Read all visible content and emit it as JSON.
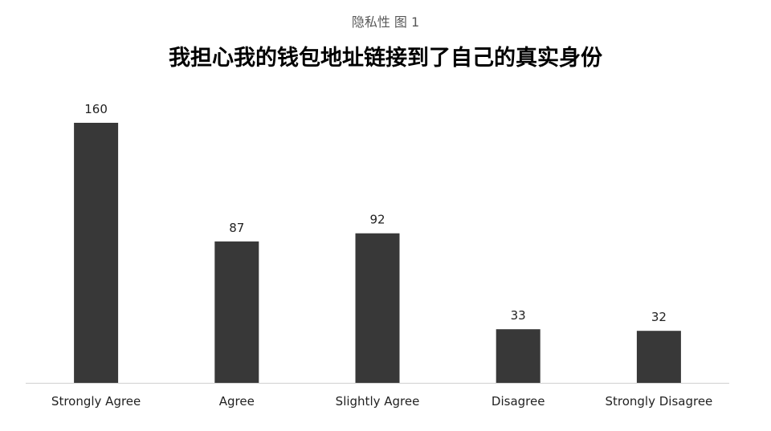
{
  "chart_data": {
    "type": "bar",
    "subtitle": "隐私性 图 1",
    "title": "我担心我的钱包地址链接到了自己的真实身份",
    "categories": [
      "Strongly Agree",
      "Agree",
      "Slightly Agree",
      "Disagree",
      "Strongly Disagree"
    ],
    "values": [
      160,
      87,
      92,
      33,
      32
    ],
    "data_labels": [
      "160",
      "87",
      "92",
      "33",
      "32"
    ],
    "xlabel": "",
    "ylabel": "",
    "ylim": [
      0,
      160
    ],
    "grid": false,
    "legend": "none",
    "bar_color": "#383838"
  }
}
